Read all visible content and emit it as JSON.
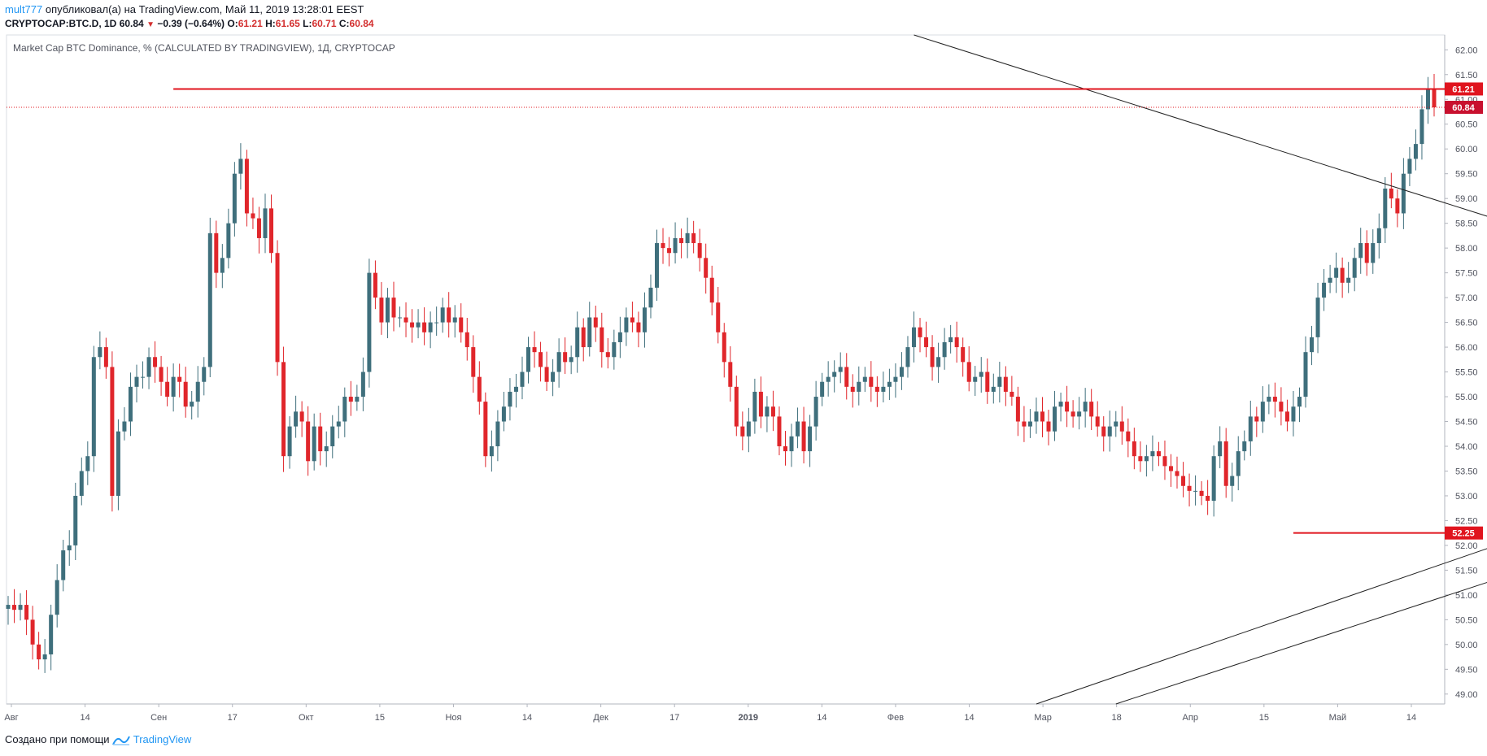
{
  "header": {
    "user": "mult777",
    "published_text": " опубликовал(а) на TradingView.com, Май 11, 2019 13:28:01 EEST",
    "symbol": "CRYPTOCAP:BTC.D, 1D",
    "last": "60.84",
    "change": "−0.39 (−0.64%)",
    "o_label": "O:",
    "o_value": "61.21",
    "h_label": "H:",
    "h_value": "61.65",
    "l_label": "L:",
    "l_value": "60.71",
    "c_label": "C:",
    "c_value": "60.84"
  },
  "footer": {
    "made_with": "Создано при помощи ",
    "brand": "TradingView"
  },
  "colors": {
    "up": "#3f6f7c",
    "down": "#e0262b",
    "level": "#e0141e",
    "trend": "#222222",
    "axis": "#d9dde3"
  },
  "chart_data": {
    "type": "candlestick",
    "title": "Market Cap BTC Dominance, % (CALCULATED BY TRADINGVIEW), 1Д, CRYPTOCAP",
    "ylim": [
      48.8,
      62.3
    ],
    "y_ticks": [
      "49.00",
      "49.50",
      "50.00",
      "50.50",
      "51.00",
      "51.50",
      "52.00",
      "52.50",
      "53.00",
      "53.50",
      "54.00",
      "54.50",
      "55.00",
      "55.50",
      "56.00",
      "56.50",
      "57.00",
      "57.50",
      "58.00",
      "58.50",
      "59.00",
      "59.50",
      "60.00",
      "60.50",
      "61.00",
      "61.50",
      "62.00"
    ],
    "x_labels": [
      {
        "label": "Авг",
        "bold": false
      },
      {
        "label": "14",
        "bold": false
      },
      {
        "label": "Сен",
        "bold": false
      },
      {
        "label": "17",
        "bold": false
      },
      {
        "label": "Окт",
        "bold": false
      },
      {
        "label": "15",
        "bold": false
      },
      {
        "label": "Ноя",
        "bold": false
      },
      {
        "label": "14",
        "bold": false
      },
      {
        "label": "Дек",
        "bold": false
      },
      {
        "label": "17",
        "bold": false
      },
      {
        "label": "2019",
        "bold": true
      },
      {
        "label": "14",
        "bold": false
      },
      {
        "label": "Фев",
        "bold": false
      },
      {
        "label": "14",
        "bold": false
      },
      {
        "label": "Мар",
        "bold": false
      },
      {
        "label": "18",
        "bold": false
      },
      {
        "label": "Апр",
        "bold": false
      },
      {
        "label": "15",
        "bold": false
      },
      {
        "label": "Май",
        "bold": false
      },
      {
        "label": "14",
        "bold": false
      }
    ],
    "price_labels": [
      {
        "value": 61.21,
        "text": "61.21",
        "style": "level"
      },
      {
        "value": 60.84,
        "text": "60.84",
        "style": "last"
      },
      {
        "value": 52.25,
        "text": "52.25",
        "style": "level"
      }
    ],
    "horizontal_levels": [
      {
        "value": 61.21,
        "from_index": 27
      },
      {
        "value": 52.25,
        "from_index": 210
      }
    ],
    "last_price": 60.84,
    "closes": [
      50.8,
      50.7,
      50.8,
      50.5,
      50.0,
      49.7,
      49.8,
      50.6,
      51.3,
      51.9,
      52.0,
      53.0,
      53.5,
      53.8,
      55.8,
      56.0,
      55.6,
      53.0,
      54.3,
      54.5,
      55.2,
      55.4,
      55.4,
      55.8,
      55.6,
      55.3,
      55.0,
      55.4,
      55.3,
      54.8,
      54.9,
      55.3,
      55.6,
      58.3,
      57.5,
      57.8,
      58.5,
      59.5,
      59.8,
      58.7,
      58.6,
      58.2,
      58.8,
      57.9,
      55.7,
      53.8,
      54.4,
      54.7,
      54.5,
      53.7,
      54.4,
      53.9,
      54.0,
      54.4,
      54.5,
      55.0,
      54.9,
      55.0,
      55.5,
      57.5,
      57.0,
      56.5,
      57.0,
      56.6,
      56.6,
      56.5,
      56.4,
      56.5,
      56.3,
      56.5,
      56.5,
      56.8,
      56.5,
      56.6,
      56.3,
      56.0,
      55.4,
      54.9,
      53.8,
      54.0,
      54.5,
      54.8,
      55.1,
      55.2,
      55.5,
      56.0,
      55.9,
      55.6,
      55.3,
      55.5,
      55.9,
      55.7,
      55.8,
      56.4,
      56.0,
      56.6,
      56.4,
      55.9,
      55.8,
      56.1,
      56.3,
      56.6,
      56.5,
      56.3,
      56.8,
      57.2,
      58.1,
      58.0,
      57.9,
      58.2,
      58.1,
      58.3,
      58.1,
      57.8,
      57.4,
      56.9,
      56.3,
      55.7,
      55.2,
      54.4,
      54.2,
      54.5,
      55.1,
      54.6,
      54.8,
      54.6,
      54.0,
      53.9,
      54.2,
      54.5,
      53.9,
      54.4,
      55.0,
      55.3,
      55.4,
      55.5,
      55.6,
      55.2,
      55.1,
      55.3,
      55.4,
      55.2,
      55.1,
      55.2,
      55.3,
      55.4,
      55.6,
      56.0,
      56.4,
      56.2,
      56.0,
      55.6,
      55.8,
      56.1,
      56.2,
      56.0,
      55.7,
      55.3,
      55.4,
      55.5,
      55.1,
      55.2,
      55.4,
      55.1,
      55.0,
      54.5,
      54.4,
      54.5,
      54.7,
      54.5,
      54.3,
      54.8,
      54.9,
      54.7,
      54.6,
      54.7,
      54.9,
      54.6,
      54.4,
      54.2,
      54.4,
      54.5,
      54.3,
      54.1,
      53.8,
      53.7,
      53.8,
      53.9,
      53.8,
      53.6,
      53.5,
      53.4,
      53.2,
      53.1,
      53.1,
      53.0,
      52.9,
      53.8,
      54.1,
      53.2,
      53.4,
      53.9,
      54.1,
      54.6,
      54.5,
      54.9,
      55.0,
      54.9,
      54.7,
      54.5,
      54.8,
      55.0,
      55.9,
      56.2,
      57.0,
      57.3,
      57.4,
      57.6,
      57.3,
      57.4,
      57.8,
      58.1,
      57.7,
      58.1,
      58.4,
      59.2,
      59.0,
      58.7,
      59.5,
      59.8,
      60.1,
      60.8,
      61.2,
      60.84
    ],
    "trendlines": [
      {
        "from": [
          148,
          62.3
        ],
        "to": [
          296,
          56.52
        ]
      },
      {
        "from": [
          168,
          48.8
        ],
        "to": [
          296,
          54.25
        ]
      },
      {
        "from": [
          181,
          48.8
        ],
        "to": [
          296,
          53.45
        ]
      }
    ]
  }
}
